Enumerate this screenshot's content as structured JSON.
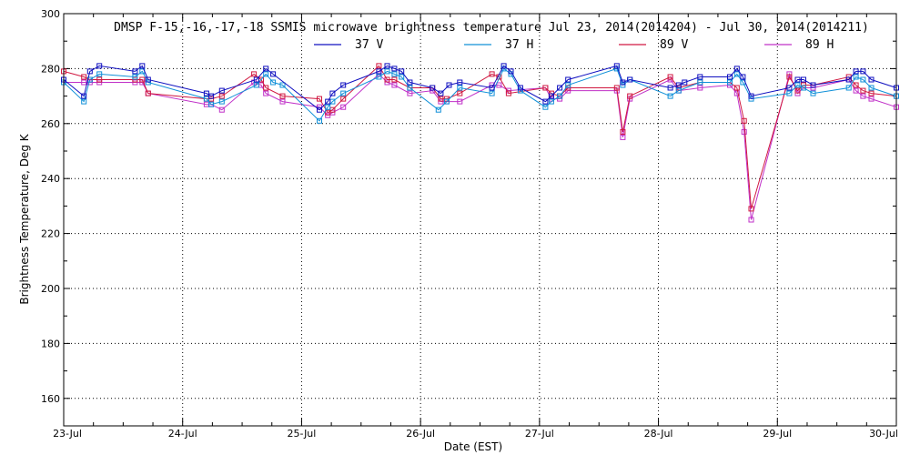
{
  "chart_data": {
    "type": "line",
    "title": "DMSP F-15,-16,-17,-18 SSMIS microwave brightness temperature Jul 23, 2014(2014204) - Jul 30, 2014(2014211)",
    "xlabel": "Date (EST)",
    "ylabel": "Brightness Temperature, Deg K",
    "xlim": [
      0,
      7
    ],
    "ylim": [
      150,
      300
    ],
    "x_tick_values": [
      0,
      1,
      2,
      3,
      4,
      5,
      6,
      7
    ],
    "x_tick_labels": [
      "23-Jul",
      "24-Jul",
      "25-Jul",
      "26-Jul",
      "27-Jul",
      "28-Jul",
      "29-Jul",
      "30-Jul"
    ],
    "y_ticks": [
      160,
      180,
      200,
      220,
      240,
      260,
      280,
      300
    ],
    "grid": true,
    "legend_position": "top-center",
    "series": [
      {
        "name": "37 V",
        "color": "#1010c0",
        "points": [
          [
            0.0,
            276
          ],
          [
            0.17,
            270
          ],
          [
            0.22,
            279
          ],
          [
            0.3,
            281
          ],
          [
            0.6,
            279
          ],
          [
            0.66,
            281
          ],
          [
            0.71,
            276
          ],
          [
            1.2,
            271
          ],
          [
            1.24,
            270
          ],
          [
            1.33,
            272
          ],
          [
            1.62,
            276
          ],
          [
            1.7,
            280
          ],
          [
            1.76,
            278
          ],
          [
            2.15,
            265
          ],
          [
            2.22,
            268
          ],
          [
            2.26,
            271
          ],
          [
            2.35,
            274
          ],
          [
            2.65,
            279
          ],
          [
            2.72,
            281
          ],
          [
            2.78,
            280
          ],
          [
            2.84,
            279
          ],
          [
            2.91,
            275
          ],
          [
            3.1,
            273
          ],
          [
            3.17,
            271
          ],
          [
            3.24,
            274
          ],
          [
            3.33,
            275
          ],
          [
            3.6,
            273
          ],
          [
            3.7,
            281
          ],
          [
            3.76,
            279
          ],
          [
            3.84,
            273
          ],
          [
            4.05,
            268
          ],
          [
            4.1,
            270
          ],
          [
            4.17,
            273
          ],
          [
            4.24,
            276
          ],
          [
            4.65,
            281
          ],
          [
            4.7,
            275
          ],
          [
            4.76,
            276
          ],
          [
            5.1,
            273
          ],
          [
            5.17,
            274
          ],
          [
            5.22,
            275
          ],
          [
            5.35,
            277
          ],
          [
            5.6,
            277
          ],
          [
            5.66,
            280
          ],
          [
            5.71,
            277
          ],
          [
            5.78,
            270
          ],
          [
            6.1,
            273
          ],
          [
            6.17,
            276
          ],
          [
            6.22,
            276
          ],
          [
            6.3,
            274
          ],
          [
            6.6,
            276
          ],
          [
            6.66,
            279
          ],
          [
            6.72,
            279
          ],
          [
            6.79,
            276
          ],
          [
            7.0,
            273
          ]
        ]
      },
      {
        "name": "37 H",
        "color": "#1090d8",
        "points": [
          [
            0.0,
            275
          ],
          [
            0.17,
            268
          ],
          [
            0.22,
            276
          ],
          [
            0.3,
            278
          ],
          [
            0.6,
            277
          ],
          [
            0.66,
            279
          ],
          [
            0.71,
            275
          ],
          [
            1.2,
            269
          ],
          [
            1.24,
            267
          ],
          [
            1.33,
            268
          ],
          [
            1.62,
            274
          ],
          [
            1.7,
            278
          ],
          [
            1.76,
            275
          ],
          [
            1.84,
            274
          ],
          [
            2.15,
            261
          ],
          [
            2.22,
            266
          ],
          [
            2.26,
            268
          ],
          [
            2.35,
            271
          ],
          [
            2.65,
            277
          ],
          [
            2.72,
            279
          ],
          [
            2.78,
            278
          ],
          [
            2.84,
            277
          ],
          [
            2.91,
            273
          ],
          [
            3.15,
            265
          ],
          [
            3.22,
            268
          ],
          [
            3.33,
            273
          ],
          [
            3.6,
            271
          ],
          [
            3.7,
            280
          ],
          [
            3.76,
            278
          ],
          [
            3.84,
            272
          ],
          [
            4.05,
            266
          ],
          [
            4.1,
            268
          ],
          [
            4.17,
            270
          ],
          [
            4.24,
            274
          ],
          [
            4.65,
            280
          ],
          [
            4.7,
            274
          ],
          [
            4.76,
            276
          ],
          [
            5.1,
            270
          ],
          [
            5.17,
            272
          ],
          [
            5.35,
            275
          ],
          [
            5.6,
            275
          ],
          [
            5.66,
            278
          ],
          [
            5.71,
            275
          ],
          [
            5.78,
            269
          ],
          [
            6.1,
            271
          ],
          [
            6.17,
            274
          ],
          [
            6.22,
            273
          ],
          [
            6.3,
            271
          ],
          [
            6.6,
            273
          ],
          [
            6.66,
            277
          ],
          [
            6.72,
            276
          ],
          [
            6.79,
            273
          ],
          [
            7.0,
            270
          ]
        ]
      },
      {
        "name": "89 V",
        "color": "#d01840",
        "points": [
          [
            0.0,
            279
          ],
          [
            0.17,
            277
          ],
          [
            0.22,
            276
          ],
          [
            0.3,
            276
          ],
          [
            0.6,
            276
          ],
          [
            0.66,
            276
          ],
          [
            0.71,
            271
          ],
          [
            1.2,
            269
          ],
          [
            1.24,
            269
          ],
          [
            1.33,
            270
          ],
          [
            1.6,
            278
          ],
          [
            1.66,
            276
          ],
          [
            1.7,
            273
          ],
          [
            1.84,
            270
          ],
          [
            2.15,
            269
          ],
          [
            2.22,
            264
          ],
          [
            2.26,
            265
          ],
          [
            2.35,
            269
          ],
          [
            2.65,
            281
          ],
          [
            2.72,
            276
          ],
          [
            2.78,
            276
          ],
          [
            2.91,
            273
          ],
          [
            3.1,
            273
          ],
          [
            3.17,
            269
          ],
          [
            3.22,
            269
          ],
          [
            3.33,
            271
          ],
          [
            3.6,
            278
          ],
          [
            3.66,
            277
          ],
          [
            3.74,
            271
          ],
          [
            4.05,
            273
          ],
          [
            4.1,
            271
          ],
          [
            4.17,
            270
          ],
          [
            4.24,
            273
          ],
          [
            4.65,
            273
          ],
          [
            4.7,
            257
          ],
          [
            4.76,
            270
          ],
          [
            5.1,
            277
          ],
          [
            5.17,
            273
          ],
          [
            5.35,
            275
          ],
          [
            5.6,
            275
          ],
          [
            5.66,
            273
          ],
          [
            5.72,
            261
          ],
          [
            5.78,
            229
          ],
          [
            6.1,
            277
          ],
          [
            6.17,
            272
          ],
          [
            6.22,
            274
          ],
          [
            6.3,
            274
          ],
          [
            6.6,
            277
          ],
          [
            6.66,
            274
          ],
          [
            6.72,
            272
          ],
          [
            6.79,
            271
          ],
          [
            7.0,
            270
          ]
        ]
      },
      {
        "name": "89 H",
        "color": "#c030c8",
        "points": [
          [
            0.0,
            275
          ],
          [
            0.17,
            275
          ],
          [
            0.22,
            275
          ],
          [
            0.3,
            275
          ],
          [
            0.6,
            275
          ],
          [
            0.66,
            275
          ],
          [
            0.71,
            271
          ],
          [
            1.2,
            267
          ],
          [
            1.24,
            267
          ],
          [
            1.33,
            265
          ],
          [
            1.6,
            275
          ],
          [
            1.66,
            274
          ],
          [
            1.7,
            271
          ],
          [
            1.84,
            268
          ],
          [
            2.15,
            266
          ],
          [
            2.22,
            263
          ],
          [
            2.26,
            264
          ],
          [
            2.35,
            266
          ],
          [
            2.65,
            278
          ],
          [
            2.72,
            275
          ],
          [
            2.78,
            274
          ],
          [
            2.91,
            271
          ],
          [
            3.1,
            272
          ],
          [
            3.17,
            268
          ],
          [
            3.22,
            268
          ],
          [
            3.33,
            268
          ],
          [
            3.6,
            274
          ],
          [
            3.66,
            274
          ],
          [
            3.74,
            272
          ],
          [
            4.05,
            273
          ],
          [
            4.1,
            269
          ],
          [
            4.17,
            269
          ],
          [
            4.24,
            272
          ],
          [
            4.65,
            272
          ],
          [
            4.7,
            255
          ],
          [
            4.76,
            269
          ],
          [
            5.1,
            276
          ],
          [
            5.17,
            272
          ],
          [
            5.35,
            273
          ],
          [
            5.6,
            274
          ],
          [
            5.66,
            271
          ],
          [
            5.72,
            257
          ],
          [
            5.78,
            225
          ],
          [
            6.1,
            278
          ],
          [
            6.17,
            271
          ],
          [
            6.22,
            273
          ],
          [
            6.3,
            273
          ],
          [
            6.6,
            276
          ],
          [
            6.66,
            272
          ],
          [
            6.72,
            270
          ],
          [
            6.79,
            269
          ],
          [
            7.0,
            266
          ]
        ]
      }
    ]
  }
}
